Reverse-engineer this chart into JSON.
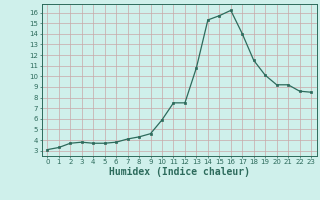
{
  "x": [
    0,
    1,
    2,
    3,
    4,
    5,
    6,
    7,
    8,
    9,
    10,
    11,
    12,
    13,
    14,
    15,
    16,
    17,
    18,
    19,
    20,
    21,
    22,
    23
  ],
  "y": [
    3.1,
    3.3,
    3.7,
    3.8,
    3.7,
    3.7,
    3.8,
    4.1,
    4.3,
    4.6,
    5.9,
    7.5,
    7.5,
    10.8,
    15.3,
    15.7,
    16.2,
    14.0,
    11.5,
    10.1,
    9.2,
    9.2,
    8.6,
    8.5
  ],
  "line_color": "#2d6b5c",
  "marker": "s",
  "marker_size": 1.8,
  "bg_color": "#cff0eb",
  "grid_color_major": "#b8d8d3",
  "grid_color_minor": "#d4ecea",
  "axis_color": "#2d6b5c",
  "tick_color": "#2d6b5c",
  "xlabel": "Humidex (Indice chaleur)",
  "xlabel_fontsize": 7,
  "ylim": [
    2.5,
    16.8
  ],
  "xlim": [
    -0.5,
    23.5
  ],
  "yticks": [
    3,
    4,
    5,
    6,
    7,
    8,
    9,
    10,
    11,
    12,
    13,
    14,
    15,
    16
  ],
  "xticks": [
    0,
    1,
    2,
    3,
    4,
    5,
    6,
    7,
    8,
    9,
    10,
    11,
    12,
    13,
    14,
    15,
    16,
    17,
    18,
    19,
    20,
    21,
    22,
    23
  ]
}
